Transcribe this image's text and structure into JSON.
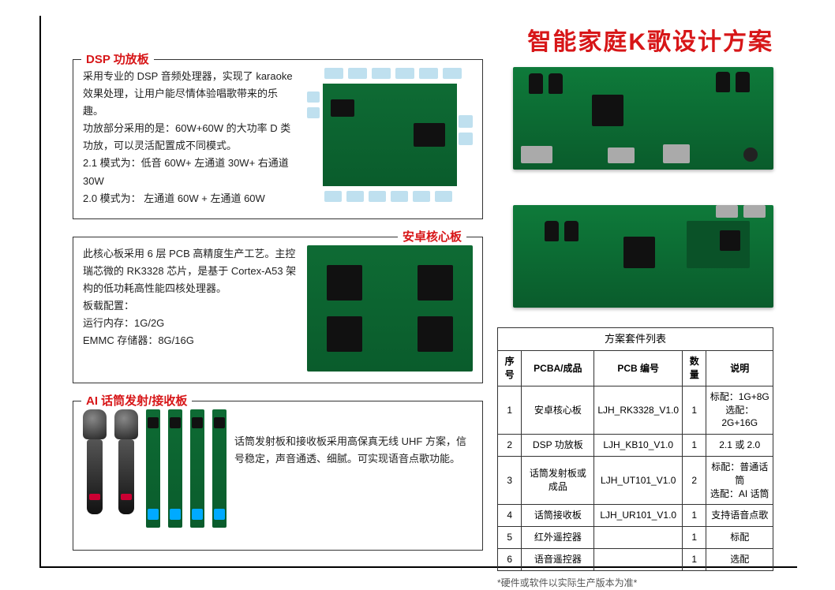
{
  "title": "智能家庭K歌设计方案",
  "sections": {
    "dsp": {
      "heading": "DSP 功放板",
      "desc": "采用专业的 DSP 音频处理器，实现了 karaoke 效果处理，让用户能尽情体验唱歌带来的乐趣。\n功放部分采用的是：60W+60W 的大功率 D 类功放，可以灵活配置成不同模式。\n2.1 模式为：低音 60W+ 左通道 30W+ 右通道 30W\n2.0 模式为： 左通道 60W + 左通道 60W"
    },
    "android": {
      "heading": "安卓核心板",
      "desc": "此核心板采用 6 层 PCB 高精度生产工艺。主控瑞芯微的 RK3328 芯片，是基于 Cortex-A53 架构的低功耗高性能四核处理器。\n板载配置：\n运行内存：1G/2G\nEMMC 存储器：8G/16G"
    },
    "ai": {
      "heading": "AI 话筒发射/接收板",
      "desc": "话筒发射板和接收板采用高保真无线 UHF 方案，信号稳定，声音通透、细腻。可实现语音点歌功能。"
    }
  },
  "table": {
    "title": "方案套件列表",
    "columns": [
      "序号",
      "PCBA/成品",
      "PCB 编号",
      "数量",
      "说明"
    ],
    "rows": [
      [
        "1",
        "安卓核心板",
        "LJH_RK3328_V1.0",
        "1",
        "标配：1G+8G\n选配：2G+16G"
      ],
      [
        "2",
        "DSP 功放板",
        "LJH_KB10_V1.0",
        "1",
        "2.1 或 2.0"
      ],
      [
        "3",
        "话筒发射板或成品",
        "LJH_UT101_V1.0",
        "2",
        "标配：普通话筒\n选配：AI 话筒"
      ],
      [
        "4",
        "话筒接收板",
        "LJH_UR101_V1.0",
        "1",
        "支持语音点歌"
      ],
      [
        "5",
        "红外遥控器",
        "",
        "1",
        "标配"
      ],
      [
        "6",
        "语音遥控器",
        "",
        "1",
        "选配"
      ]
    ],
    "footnote": "*硬件或软件以实际生产版本为准*"
  }
}
